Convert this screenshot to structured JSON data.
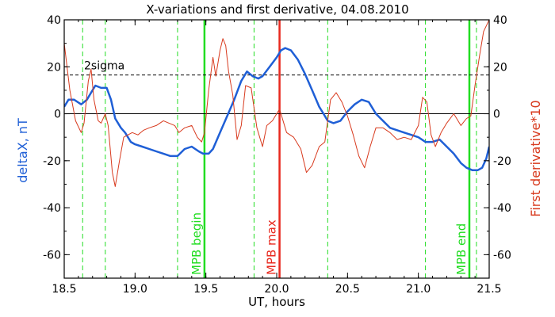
{
  "chart_data": {
    "type": "line",
    "title": "X-variations and first derivative, 04.08.2010",
    "xlabel": "UT, hours",
    "ylabel_left": "deltaX, nT",
    "ylabel_right": "First derivative*10",
    "xlim": [
      18.5,
      21.5
    ],
    "ylim": [
      -70,
      40
    ],
    "x_ticks": [
      18.5,
      19.0,
      19.5,
      20.0,
      20.5,
      21.0,
      21.5
    ],
    "x_tick_labels": [
      "18.5",
      "19.0",
      "19.5",
      "20.0",
      "20.5",
      "21.0",
      "21.5"
    ],
    "y_ticks": [
      -60,
      -40,
      -20,
      0,
      20,
      40
    ],
    "y_tick_labels": [
      "-60",
      "-40",
      "-20",
      "0",
      "20",
      "40"
    ],
    "threshold": {
      "y": 16.5,
      "label": "2sigma"
    },
    "zero_line": 0,
    "colors": {
      "deltaX": "#1f5fd6",
      "derivative": "#d83a1e",
      "mpb_bound": "#22dd22",
      "mpb_max": "#e8281e",
      "dashed": "#22dd22"
    },
    "dashed_lines_x": [
      18.63,
      18.79,
      19.3,
      19.84,
      20.36,
      21.05,
      21.41
    ],
    "markers": [
      {
        "x": 19.49,
        "label": "MPB begin",
        "kind": "bound"
      },
      {
        "x": 20.02,
        "label": "MPB max",
        "kind": "max"
      },
      {
        "x": 21.36,
        "label": "MPB end",
        "kind": "bound"
      }
    ],
    "series": [
      {
        "name": "deltaX, nT",
        "x": [
          18.5,
          18.53,
          18.57,
          18.62,
          18.66,
          18.7,
          18.72,
          18.76,
          18.8,
          18.83,
          18.86,
          18.9,
          18.93,
          18.97,
          19.0,
          19.05,
          19.1,
          19.15,
          19.2,
          19.25,
          19.3,
          19.35,
          19.4,
          19.45,
          19.48,
          19.52,
          19.55,
          19.6,
          19.65,
          19.7,
          19.75,
          19.79,
          19.83,
          19.87,
          19.9,
          19.95,
          20.0,
          20.03,
          20.06,
          20.1,
          20.15,
          20.2,
          20.25,
          20.3,
          20.33,
          20.36,
          20.4,
          20.45,
          20.5,
          20.55,
          20.6,
          20.65,
          20.7,
          20.8,
          20.9,
          20.95,
          21.0,
          21.05,
          21.1,
          21.15,
          21.2,
          21.25,
          21.3,
          21.34,
          21.38,
          21.42,
          21.45,
          21.48,
          21.5
        ],
        "y": [
          3,
          6,
          6,
          4,
          6,
          10,
          12,
          11,
          11,
          6,
          -2,
          -6,
          -8,
          -12,
          -13,
          -14,
          -15,
          -16,
          -17,
          -18,
          -18,
          -15,
          -14,
          -16,
          -17,
          -17,
          -15,
          -8,
          -1,
          6,
          14,
          18,
          16,
          15,
          16,
          20,
          24,
          27,
          28,
          27,
          23,
          17,
          10,
          3,
          0,
          -3,
          -4,
          -3,
          1,
          4,
          6,
          5,
          0,
          -6,
          -8,
          -9,
          -10,
          -12,
          -12,
          -11,
          -14,
          -17,
          -21,
          -23,
          -24,
          -24,
          -23,
          -19,
          -14
        ]
      },
      {
        "name": "First derivative*10",
        "x": [
          18.5,
          18.54,
          18.58,
          18.62,
          18.64,
          18.67,
          18.69,
          18.71,
          18.74,
          18.76,
          18.79,
          18.81,
          18.84,
          18.86,
          18.89,
          18.92,
          18.95,
          18.98,
          19.02,
          19.06,
          19.1,
          19.15,
          19.2,
          19.24,
          19.28,
          19.31,
          19.35,
          19.4,
          19.44,
          19.47,
          19.49,
          19.52,
          19.55,
          19.57,
          19.6,
          19.62,
          19.64,
          19.66,
          19.69,
          19.72,
          19.75,
          19.78,
          19.82,
          19.86,
          19.9,
          19.93,
          19.97,
          20.02,
          20.07,
          20.12,
          20.17,
          20.21,
          20.25,
          20.3,
          20.34,
          20.38,
          20.42,
          20.46,
          20.5,
          20.54,
          20.58,
          20.62,
          20.66,
          20.7,
          20.75,
          20.8,
          20.85,
          20.9,
          20.95,
          21.0,
          21.03,
          21.06,
          21.09,
          21.12,
          21.16,
          21.2,
          21.25,
          21.3,
          21.34,
          21.37,
          21.4,
          21.43,
          21.46,
          21.5
        ],
        "y": [
          30,
          10,
          -3,
          -8,
          -4,
          14,
          19,
          6,
          -3,
          -4,
          0,
          -5,
          -25,
          -31,
          -20,
          -10,
          -9,
          -8,
          -9,
          -7,
          -6,
          -5,
          -3,
          -4,
          -5,
          -8,
          -6,
          -5,
          -10,
          -12,
          -8,
          10,
          24,
          16,
          27,
          32,
          29,
          18,
          8,
          -11,
          -5,
          12,
          11,
          -6,
          -14,
          -5,
          -3,
          2,
          -8,
          -10,
          -15,
          -25,
          -22,
          -14,
          -12,
          6,
          9,
          5,
          -1,
          -9,
          -18,
          -23,
          -14,
          -6,
          -6,
          -8,
          -11,
          -10,
          -11,
          -5,
          7,
          5,
          -9,
          -14,
          -8,
          -4,
          0,
          -5,
          -2,
          -1,
          12,
          24,
          35,
          40
        ]
      }
    ]
  }
}
